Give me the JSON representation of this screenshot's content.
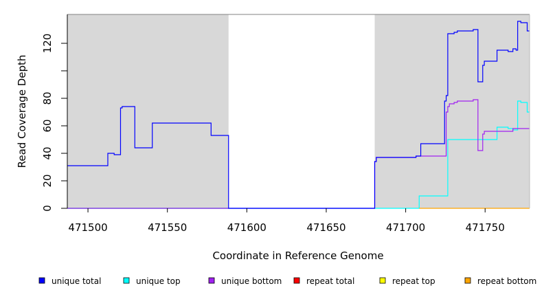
{
  "chart_data": {
    "type": "line",
    "xlabel": "Coordinate in Reference Genome",
    "ylabel": "Read Coverage Depth",
    "xlim": [
      471487,
      471778
    ],
    "ylim": [
      0,
      141
    ],
    "x_ticks": [
      471500,
      471550,
      471600,
      471650,
      471700,
      471750
    ],
    "y_ticks": [
      0,
      20,
      40,
      60,
      80,
      100,
      120
    ],
    "y_tick_labels": [
      "0",
      "20",
      "40",
      "60",
      "80",
      "",
      "120"
    ],
    "shaded_regions": [
      {
        "x0": 471487,
        "x1": 471588.5,
        "color": "#d8d8d8"
      },
      {
        "x0": 471680.5,
        "x1": 471778,
        "color": "#d8d8d8"
      }
    ],
    "series": [
      {
        "name": "unique total",
        "color": "#0000ff",
        "steps": [
          [
            471487,
            31
          ],
          [
            471512.5,
            40
          ],
          [
            471516.5,
            39
          ],
          [
            471520.5,
            73
          ],
          [
            471521.5,
            74
          ],
          [
            471529.5,
            44
          ],
          [
            471540.5,
            62
          ],
          [
            471577.5,
            53
          ],
          [
            471588.5,
            0
          ],
          [
            471680.5,
            34
          ],
          [
            471681.5,
            37
          ],
          [
            471706.5,
            38
          ],
          [
            471709.5,
            47
          ],
          [
            471724.5,
            78
          ],
          [
            471725.5,
            82
          ],
          [
            471726.5,
            127
          ],
          [
            471730.5,
            128
          ],
          [
            471732.5,
            129
          ],
          [
            471742.5,
            130
          ],
          [
            471745.5,
            92
          ],
          [
            471748.5,
            104
          ],
          [
            471749.5,
            107
          ],
          [
            471757.5,
            115
          ],
          [
            471764.5,
            114
          ],
          [
            471767.5,
            116
          ],
          [
            471769.5,
            115
          ],
          [
            471770.5,
            136
          ],
          [
            471772.5,
            135
          ],
          [
            471776.5,
            129
          ]
        ]
      },
      {
        "name": "unique top",
        "color": "#00ffff",
        "steps": [
          [
            471487,
            0
          ],
          [
            471708.5,
            9
          ],
          [
            471726.5,
            50
          ],
          [
            471757.5,
            59
          ],
          [
            471764.5,
            58
          ],
          [
            471767.5,
            57
          ],
          [
            471770.5,
            78
          ],
          [
            471772.5,
            77
          ],
          [
            471776.5,
            70
          ]
        ]
      },
      {
        "name": "unique bottom",
        "color": "#a020f0",
        "steps": [
          [
            471487,
            0
          ],
          [
            471680.5,
            34
          ],
          [
            471681.5,
            37
          ],
          [
            471706.5,
            38
          ],
          [
            471725.5,
            70
          ],
          [
            471726.5,
            74
          ],
          [
            471727.5,
            76
          ],
          [
            471730.5,
            77
          ],
          [
            471732.5,
            78
          ],
          [
            471742.5,
            79
          ],
          [
            471745.5,
            42
          ],
          [
            471748.5,
            54
          ],
          [
            471749.5,
            56
          ],
          [
            471767.5,
            58
          ]
        ]
      },
      {
        "name": "repeat total",
        "color": "#ff0000",
        "steps": []
      },
      {
        "name": "repeat top",
        "color": "#ffff00",
        "steps": []
      },
      {
        "name": "repeat bottom",
        "color": "#ffa500",
        "steps": [
          [
            471708.5,
            0
          ]
        ]
      }
    ],
    "baseline": {
      "color": "#33cc33",
      "x0": 471487,
      "x1": 471588.5,
      "y": 0
    },
    "legend_position": "bottom"
  }
}
